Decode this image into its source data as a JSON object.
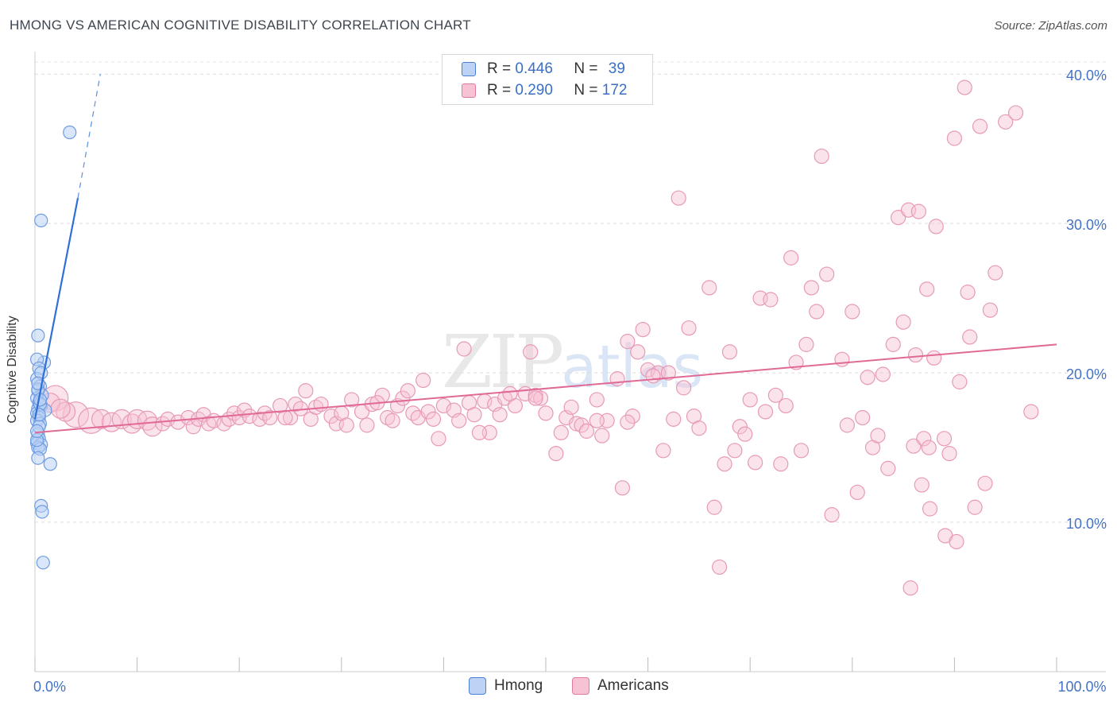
{
  "title": "HMONG VS AMERICAN COGNITIVE DISABILITY CORRELATION CHART",
  "source": "Source: ZipAtlas.com",
  "watermark": {
    "zip": "ZIP",
    "atlas": "atlas"
  },
  "colors": {
    "hmong": "#4a7fd4",
    "hmong_fill": "#bcd3f5",
    "americans": "#e07aa0",
    "americans_fill": "#f7c2d4",
    "tick": "#4472c4"
  },
  "legend": {
    "rows": [
      {
        "r_label": "R = ",
        "r_value": "0.446",
        "n_label": "N = ",
        "n_value": "39"
      },
      {
        "r_label": "R = ",
        "r_value": "0.290",
        "n_label": "N = ",
        "n_value": "172"
      }
    ]
  },
  "chart_data": {
    "type": "scatter",
    "title": "HMONG VS AMERICAN COGNITIVE DISABILITY CORRELATION CHART",
    "xlabel": "",
    "ylabel": "Cognitive Disability",
    "xlim": [
      0,
      100
    ],
    "ylim": [
      0,
      41.5
    ],
    "y_ticks": [
      {
        "v": 10,
        "label": "10.0%"
      },
      {
        "v": 20,
        "label": "20.0%"
      },
      {
        "v": 30,
        "label": "30.0%"
      },
      {
        "v": 40,
        "label": "40.0%"
      }
    ],
    "x_ticks": [
      {
        "v": 0,
        "label": "0.0%"
      },
      {
        "v": 100,
        "label": "100.0%"
      }
    ],
    "grid": true,
    "legend_position": "top-center",
    "series": [
      {
        "name": "Hmong",
        "r": 0.446,
        "n": 39,
        "trend": {
          "x0": 0.0,
          "y0": 16.9,
          "x1": 4.2,
          "y1": 31.7,
          "dash_to": [
            6.4,
            40.0
          ]
        },
        "points": [
          [
            3.4,
            36.1
          ],
          [
            0.6,
            30.2
          ],
          [
            0.3,
            22.5
          ],
          [
            0.9,
            20.7
          ],
          [
            0.2,
            20.9
          ],
          [
            0.4,
            20.3
          ],
          [
            0.2,
            19.6
          ],
          [
            0.5,
            19.1
          ],
          [
            0.3,
            18.8
          ],
          [
            0.7,
            18.5
          ],
          [
            0.2,
            18.3
          ],
          [
            0.4,
            18.0
          ],
          [
            0.6,
            17.8
          ],
          [
            0.3,
            17.6
          ],
          [
            0.2,
            17.3
          ],
          [
            1.0,
            17.5
          ],
          [
            0.4,
            17.0
          ],
          [
            0.2,
            16.8
          ],
          [
            0.5,
            16.6
          ],
          [
            0.3,
            15.9
          ],
          [
            0.4,
            15.6
          ],
          [
            0.2,
            15.3
          ],
          [
            0.6,
            15.2
          ],
          [
            0.3,
            15.0
          ],
          [
            0.5,
            14.9
          ],
          [
            0.3,
            14.3
          ],
          [
            1.5,
            13.9
          ],
          [
            0.6,
            11.1
          ],
          [
            0.7,
            10.7
          ],
          [
            0.8,
            7.3
          ],
          [
            0.3,
            18.9
          ],
          [
            0.5,
            17.9
          ],
          [
            0.4,
            16.4
          ],
          [
            0.2,
            15.5
          ],
          [
            0.6,
            20.0
          ],
          [
            0.3,
            19.3
          ],
          [
            0.5,
            18.2
          ],
          [
            0.4,
            17.2
          ],
          [
            0.2,
            16.1
          ]
        ]
      },
      {
        "name": "Americans",
        "r": 0.29,
        "n": 172,
        "trend": {
          "x0": 0.0,
          "y0": 16.0,
          "x1": 100.0,
          "y1": 21.9
        },
        "points": [
          [
            2.0,
            18.3
          ],
          [
            4.0,
            17.2
          ],
          [
            5.5,
            16.8
          ],
          [
            6.5,
            16.9
          ],
          [
            7.5,
            16.7
          ],
          [
            8.5,
            16.9
          ],
          [
            3.0,
            17.4
          ],
          [
            9.5,
            16.6
          ],
          [
            10.0,
            16.9
          ],
          [
            11.0,
            16.8
          ],
          [
            11.5,
            16.4
          ],
          [
            12.5,
            16.6
          ],
          [
            13.0,
            16.9
          ],
          [
            14.0,
            16.7
          ],
          [
            15.0,
            17.0
          ],
          [
            15.5,
            16.4
          ],
          [
            16.0,
            16.9
          ],
          [
            16.5,
            17.2
          ],
          [
            17.0,
            16.6
          ],
          [
            17.5,
            16.8
          ],
          [
            18.5,
            16.6
          ],
          [
            19.0,
            16.9
          ],
          [
            19.5,
            17.3
          ],
          [
            20.0,
            17.0
          ],
          [
            20.5,
            17.5
          ],
          [
            21.0,
            17.1
          ],
          [
            22.0,
            16.9
          ],
          [
            22.5,
            17.3
          ],
          [
            23.0,
            17.0
          ],
          [
            24.0,
            17.8
          ],
          [
            25.0,
            17.0
          ],
          [
            25.5,
            17.9
          ],
          [
            26.0,
            17.6
          ],
          [
            27.0,
            16.9
          ],
          [
            27.5,
            17.7
          ],
          [
            28.0,
            17.9
          ],
          [
            29.0,
            17.1
          ],
          [
            29.5,
            16.6
          ],
          [
            30.0,
            17.3
          ],
          [
            30.5,
            16.5
          ],
          [
            31.0,
            18.2
          ],
          [
            32.0,
            17.4
          ],
          [
            32.5,
            16.5
          ],
          [
            33.0,
            17.9
          ],
          [
            34.0,
            18.5
          ],
          [
            34.5,
            17.0
          ],
          [
            35.0,
            16.8
          ],
          [
            35.5,
            17.8
          ],
          [
            36.0,
            18.3
          ],
          [
            37.0,
            17.3
          ],
          [
            37.5,
            17.0
          ],
          [
            38.0,
            19.5
          ],
          [
            38.5,
            17.4
          ],
          [
            39.0,
            16.9
          ],
          [
            39.5,
            15.6
          ],
          [
            40.0,
            17.8
          ],
          [
            41.0,
            17.5
          ],
          [
            41.5,
            16.8
          ],
          [
            42.0,
            21.6
          ],
          [
            42.5,
            18.0
          ],
          [
            43.0,
            17.2
          ],
          [
            44.0,
            18.1
          ],
          [
            44.5,
            16.0
          ],
          [
            45.0,
            17.9
          ],
          [
            45.5,
            17.2
          ],
          [
            46.0,
            18.3
          ],
          [
            47.0,
            17.8
          ],
          [
            48.0,
            18.6
          ],
          [
            48.5,
            21.4
          ],
          [
            49.0,
            18.5
          ],
          [
            49.5,
            18.3
          ],
          [
            50.0,
            17.3
          ],
          [
            51.0,
            14.6
          ],
          [
            51.5,
            16.0
          ],
          [
            52.0,
            17.0
          ],
          [
            52.5,
            17.7
          ],
          [
            53.0,
            16.6
          ],
          [
            53.5,
            16.5
          ],
          [
            54.0,
            16.1
          ],
          [
            55.0,
            18.2
          ],
          [
            55.5,
            15.8
          ],
          [
            56.0,
            16.8
          ],
          [
            57.0,
            19.6
          ],
          [
            57.5,
            12.3
          ],
          [
            58.0,
            22.1
          ],
          [
            58.5,
            17.1
          ],
          [
            59.0,
            21.4
          ],
          [
            59.5,
            22.9
          ],
          [
            60.0,
            20.2
          ],
          [
            61.0,
            20.0
          ],
          [
            61.5,
            14.8
          ],
          [
            62.0,
            20.0
          ],
          [
            62.5,
            16.9
          ],
          [
            63.0,
            31.7
          ],
          [
            63.5,
            19.0
          ],
          [
            64.0,
            23.0
          ],
          [
            64.5,
            17.1
          ],
          [
            65.0,
            16.3
          ],
          [
            66.0,
            25.7
          ],
          [
            66.5,
            11.0
          ],
          [
            67.0,
            7.0
          ],
          [
            67.5,
            13.9
          ],
          [
            68.0,
            21.4
          ],
          [
            68.5,
            14.8
          ],
          [
            69.0,
            16.4
          ],
          [
            69.5,
            15.9
          ],
          [
            70.0,
            18.2
          ],
          [
            70.5,
            14.0
          ],
          [
            71.0,
            25.0
          ],
          [
            71.5,
            17.4
          ],
          [
            72.0,
            24.9
          ],
          [
            72.5,
            18.5
          ],
          [
            73.0,
            13.9
          ],
          [
            73.5,
            17.8
          ],
          [
            74.0,
            27.7
          ],
          [
            74.5,
            20.7
          ],
          [
            75.0,
            14.8
          ],
          [
            75.5,
            21.9
          ],
          [
            76.0,
            25.7
          ],
          [
            76.5,
            24.1
          ],
          [
            77.0,
            34.5
          ],
          [
            77.5,
            26.6
          ],
          [
            78.0,
            10.5
          ],
          [
            79.0,
            20.9
          ],
          [
            79.5,
            16.5
          ],
          [
            80.0,
            24.1
          ],
          [
            80.5,
            12.0
          ],
          [
            81.0,
            17.0
          ],
          [
            81.5,
            19.7
          ],
          [
            82.0,
            15.0
          ],
          [
            82.5,
            15.8
          ],
          [
            83.0,
            19.9
          ],
          [
            83.5,
            13.6
          ],
          [
            84.0,
            21.9
          ],
          [
            84.5,
            30.4
          ],
          [
            85.0,
            23.4
          ],
          [
            85.5,
            30.9
          ],
          [
            86.0,
            15.1
          ],
          [
            86.5,
            30.8
          ],
          [
            87.0,
            15.6
          ],
          [
            87.5,
            15.0
          ],
          [
            88.0,
            21.0
          ],
          [
            89.0,
            15.6
          ],
          [
            89.5,
            14.6
          ],
          [
            90.0,
            35.7
          ],
          [
            90.5,
            19.4
          ],
          [
            91.0,
            39.1
          ],
          [
            91.5,
            22.4
          ],
          [
            92.0,
            11.0
          ],
          [
            92.5,
            36.5
          ],
          [
            93.0,
            12.6
          ],
          [
            93.5,
            24.2
          ],
          [
            94.0,
            26.7
          ],
          [
            85.7,
            5.6
          ],
          [
            86.2,
            21.2
          ],
          [
            86.8,
            12.5
          ],
          [
            87.3,
            25.6
          ],
          [
            87.6,
            10.9
          ],
          [
            88.2,
            29.8
          ],
          [
            89.1,
            9.1
          ],
          [
            90.2,
            8.7
          ],
          [
            91.3,
            25.4
          ],
          [
            97.5,
            17.4
          ],
          [
            95.0,
            36.8
          ],
          [
            96.0,
            37.4
          ],
          [
            26.5,
            18.8
          ],
          [
            33.5,
            18.0
          ],
          [
            46.5,
            18.6
          ],
          [
            55.0,
            16.8
          ],
          [
            58.0,
            16.7
          ],
          [
            24.5,
            17.0
          ],
          [
            36.5,
            18.8
          ],
          [
            43.5,
            16.0
          ],
          [
            49.0,
            18.3
          ],
          [
            1.5,
            18.0
          ],
          [
            2.5,
            17.6
          ],
          [
            60.5,
            19.8
          ]
        ]
      }
    ]
  }
}
